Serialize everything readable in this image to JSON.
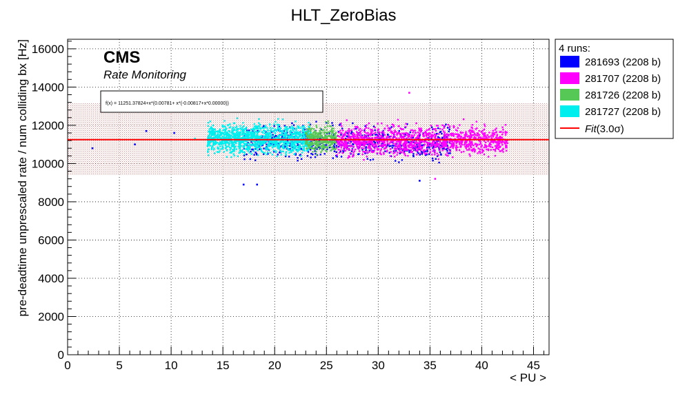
{
  "chart_data": {
    "type": "scatter",
    "title": "HLT_ZeroBias",
    "xlabel": "< PU >",
    "ylabel": "pre-deadtime unprescaled rate / num colliding bx [Hz]",
    "xlim": [
      0,
      46.5
    ],
    "ylim": [
      0,
      16500
    ],
    "x_ticks": [
      0,
      5,
      10,
      15,
      20,
      25,
      30,
      35,
      40,
      45
    ],
    "y_ticks": [
      0,
      2000,
      4000,
      6000,
      8000,
      10000,
      12000,
      14000,
      16000
    ],
    "grid": true,
    "legend_header": "4 runs:",
    "legend_position": "top-right outside",
    "series": [
      {
        "name": "281693 (2208 b)",
        "color": "#0000ff",
        "x_range": [
          17,
          37
        ],
        "y_center": 11100,
        "y_spread": 900,
        "count": 700
      },
      {
        "name": "281707 (2208 b)",
        "color": "#ff00ff",
        "x_range": [
          26,
          42.5
        ],
        "y_center": 11200,
        "y_spread": 800,
        "count": 1300
      },
      {
        "name": "281726 (2208 b)",
        "color": "#55c855",
        "x_range": [
          23,
          26
        ],
        "y_center": 11300,
        "y_spread": 700,
        "count": 300
      },
      {
        "name": "281727 (2208 b)",
        "color": "#00eeee",
        "x_range": [
          13.5,
          23.5
        ],
        "y_center": 11300,
        "y_spread": 800,
        "count": 1300
      }
    ],
    "outliers": [
      {
        "x": 2.4,
        "y": 10800,
        "color": "#0000ff"
      },
      {
        "x": 6.5,
        "y": 11000,
        "color": "#0000ff"
      },
      {
        "x": 7.6,
        "y": 11700,
        "color": "#0000ff"
      },
      {
        "x": 10.3,
        "y": 11600,
        "color": "#0000ff"
      },
      {
        "x": 12.3,
        "y": 11300,
        "color": "#00eeee"
      },
      {
        "x": 33.0,
        "y": 13700,
        "color": "#ff00ff"
      },
      {
        "x": 17.0,
        "y": 8900,
        "color": "#0000ff"
      },
      {
        "x": 18.3,
        "y": 8900,
        "color": "#0000ff"
      },
      {
        "x": 34.0,
        "y": 9100,
        "color": "#0000ff"
      },
      {
        "x": 35.5,
        "y": 9200,
        "color": "#ff00ff"
      }
    ],
    "fit": {
      "label": "Fit(3.0σ)",
      "legend_fit": "Fit",
      "legend_sigma": "(3.0σ)",
      "color": "#ff0000",
      "value": 11251.37824,
      "band": [
        9400,
        13150
      ],
      "formula": "f(x) = 11251.37824+x*(0.00781+ x*(-0.00817+x*0.00000))"
    },
    "annotations": {
      "cms": "CMS",
      "subtitle": "Rate Monitoring"
    }
  }
}
